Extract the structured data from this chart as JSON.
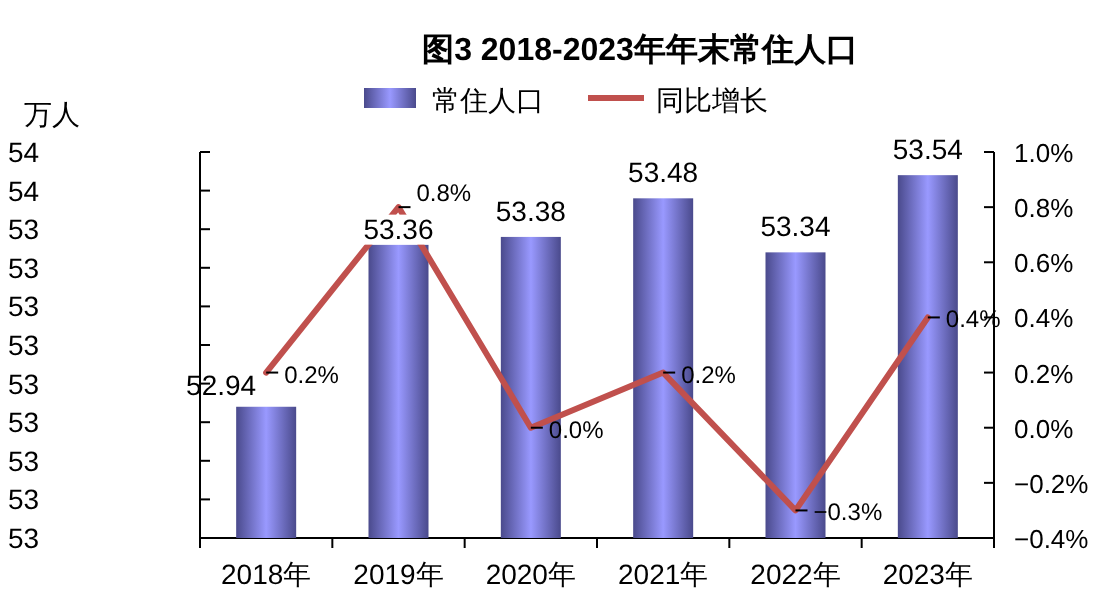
{
  "chart_data": {
    "type": "bar",
    "title": "图3  2018-2023年年末常住人口",
    "ylabel": "万人",
    "categories": [
      "2018年",
      "2019年",
      "2020年",
      "2021年",
      "2022年",
      "2023年"
    ],
    "series": [
      {
        "name": "常住人口",
        "color": "#9999ff",
        "values": [
          52.94,
          53.36,
          53.38,
          53.48,
          53.34,
          53.54
        ],
        "value_labels": [
          "52.94",
          "53.36",
          "53.38",
          "53.48",
          "53.34",
          "53.54"
        ]
      },
      {
        "name": "同比增长",
        "type": "line",
        "axis": "y2",
        "color": "#c0504d",
        "values": [
          0.2,
          0.8,
          0.0,
          0.2,
          -0.3,
          0.4
        ],
        "value_labels": [
          "0.2%",
          "0.8%",
          "0.0%",
          "0.2%",
          "−0.3%",
          "0.4%"
        ]
      }
    ],
    "ylim": [
      52.6,
      53.6
    ],
    "yticks": [
      {
        "value": 52.6,
        "label": "53"
      },
      {
        "value": 52.7,
        "label": "53"
      },
      {
        "value": 52.8,
        "label": "53"
      },
      {
        "value": 52.9,
        "label": "53"
      },
      {
        "value": 53.0,
        "label": "53"
      },
      {
        "value": 53.1,
        "label": "53"
      },
      {
        "value": 53.2,
        "label": "53"
      },
      {
        "value": 53.3,
        "label": "53"
      },
      {
        "value": 53.4,
        "label": "53"
      },
      {
        "value": 53.5,
        "label": "54"
      },
      {
        "value": 53.6,
        "label": "54"
      }
    ],
    "y2lim": [
      -0.4,
      1.0
    ],
    "y2ticks": [
      {
        "value": -0.4,
        "label": "−0.4%"
      },
      {
        "value": -0.2,
        "label": "−0.2%"
      },
      {
        "value": 0.0,
        "label": "0.0%"
      },
      {
        "value": 0.2,
        "label": "0.2%"
      },
      {
        "value": 0.4,
        "label": "0.4%"
      },
      {
        "value": 0.6,
        "label": "0.6%"
      },
      {
        "value": 0.8,
        "label": "0.8%"
      },
      {
        "value": 1.0,
        "label": "1.0%"
      }
    ],
    "legend": "top",
    "marker": "none",
    "grid": false
  }
}
